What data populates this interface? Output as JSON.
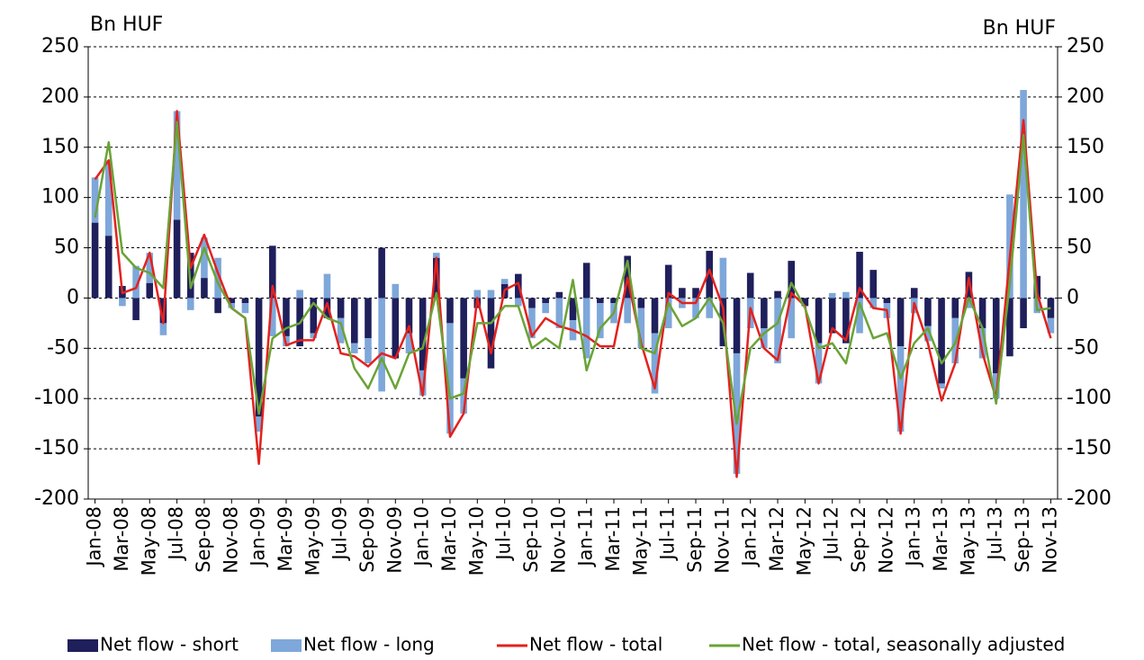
{
  "chart_data": {
    "type": "bar_line",
    "y_label": "Bn HUF",
    "y2_label": "Bn HUF",
    "categories": [
      "Jan-08",
      null,
      "Mar-08",
      null,
      "May-08",
      null,
      "Jul-08",
      null,
      "Sep-08",
      null,
      "Nov-08",
      null,
      "Jan-09",
      null,
      "Mar-09",
      null,
      "May-09",
      null,
      "Jul-09",
      null,
      "Sep-09",
      null,
      "Nov-09",
      null,
      "Jan-10",
      null,
      "Mar-10",
      null,
      "May-10",
      null,
      "Jul-10",
      null,
      "Sep-10",
      null,
      "Nov-10",
      null,
      "Jan-11",
      null,
      "Mar-11",
      null,
      "May-11",
      null,
      "Jul-11",
      null,
      "Sep-11",
      null,
      "Nov-11",
      null,
      "Jan-12",
      null,
      "Mar-12",
      null,
      "May-12",
      null,
      "Jul-12",
      null,
      "Sep-12",
      null,
      "Nov-12",
      null,
      "Jan-13",
      null,
      "Mar-13",
      null,
      "May-13",
      null,
      "Jul-13",
      null,
      "Sep-13",
      null,
      "Nov-13"
    ],
    "series": [
      {
        "name": "Net flow - short",
        "kind": "bar",
        "color": "#1f1f5c",
        "values": [
          75,
          62,
          12,
          -22,
          15,
          -25,
          78,
          45,
          20,
          -15,
          -5,
          -5,
          -118,
          52,
          -38,
          -48,
          -35,
          -20,
          -20,
          -45,
          -40,
          50,
          -60,
          -35,
          -72,
          40,
          -25,
          -80,
          -10,
          -70,
          14,
          24,
          -10,
          -5,
          6,
          -22,
          35,
          -5,
          -5,
          42,
          -10,
          -35,
          33,
          10,
          10,
          47,
          -48,
          -55,
          25,
          -30,
          7,
          37,
          -8,
          -45,
          -35,
          -45,
          46,
          28,
          -5,
          -48,
          10,
          -28,
          -85,
          -20,
          26,
          -30,
          -75,
          -58,
          -30,
          22,
          -20
        ]
      },
      {
        "name": "Net flow - long",
        "kind": "bar",
        "color": "#7ea7da",
        "values": [
          45,
          75,
          -8,
          32,
          30,
          -12,
          108,
          -12,
          40,
          40,
          -5,
          -10,
          -15,
          -38,
          -10,
          8,
          -5,
          24,
          -25,
          -10,
          -25,
          -93,
          14,
          -20,
          -25,
          5,
          -110,
          -35,
          8,
          8,
          5,
          -8,
          -30,
          -10,
          -30,
          -20,
          -60,
          -35,
          -20,
          -25,
          -40,
          -60,
          -30,
          -10,
          -20,
          -20,
          40,
          -120,
          -30,
          -20,
          -65,
          -40,
          0,
          -40,
          5,
          6,
          -35,
          -10,
          -15,
          -85,
          -15,
          -15,
          -5,
          -45,
          -10,
          -30,
          -25,
          103,
          207,
          -15,
          -15
        ]
      },
      {
        "name": "Net flow - total",
        "kind": "line",
        "color": "#e3211d",
        "values": [
          118,
          137,
          5,
          10,
          45,
          -25,
          186,
          30,
          63,
          25,
          -10,
          -20,
          -165,
          12,
          -47,
          -42,
          -42,
          -5,
          -55,
          -58,
          -68,
          -55,
          -60,
          -28,
          -97,
          40,
          -138,
          -115,
          0,
          -55,
          8,
          15,
          -38,
          -20,
          -28,
          -32,
          -38,
          -48,
          -48,
          20,
          -45,
          -90,
          5,
          -5,
          -5,
          28,
          -10,
          -178,
          -10,
          -50,
          -62,
          5,
          -8,
          -85,
          -30,
          -42,
          10,
          -10,
          -12,
          -135,
          -5,
          -45,
          -102,
          -65,
          20,
          -55,
          -100,
          40,
          177,
          5,
          -40
        ]
      },
      {
        "name": "Net flow - total, seasonally adjusted",
        "kind": "line",
        "color": "#6aa336",
        "values": [
          80,
          155,
          45,
          30,
          25,
          10,
          175,
          10,
          50,
          15,
          -10,
          -20,
          -115,
          -40,
          -30,
          -25,
          -5,
          -20,
          -25,
          -70,
          -90,
          -60,
          -90,
          -55,
          -50,
          5,
          -100,
          -95,
          -25,
          -25,
          -8,
          -8,
          -50,
          -40,
          -50,
          18,
          -72,
          -30,
          -15,
          37,
          -50,
          -55,
          -5,
          -28,
          -20,
          0,
          -25,
          -125,
          -50,
          -35,
          -25,
          15,
          -10,
          -50,
          -45,
          -65,
          -5,
          -40,
          -35,
          -80,
          -45,
          -30,
          -65,
          -45,
          0,
          -30,
          -105,
          15,
          162,
          -12,
          -10
        ]
      }
    ],
    "ylim": [
      -200,
      250
    ],
    "yticks": [
      -200,
      -150,
      -100,
      -50,
      0,
      50,
      100,
      150,
      200,
      250
    ],
    "y2lim": [
      -200,
      250
    ],
    "y2ticks": [
      -200,
      -150,
      -100,
      -50,
      0,
      50,
      100,
      150,
      200,
      250
    ],
    "grid": true,
    "legend": "bottom"
  }
}
